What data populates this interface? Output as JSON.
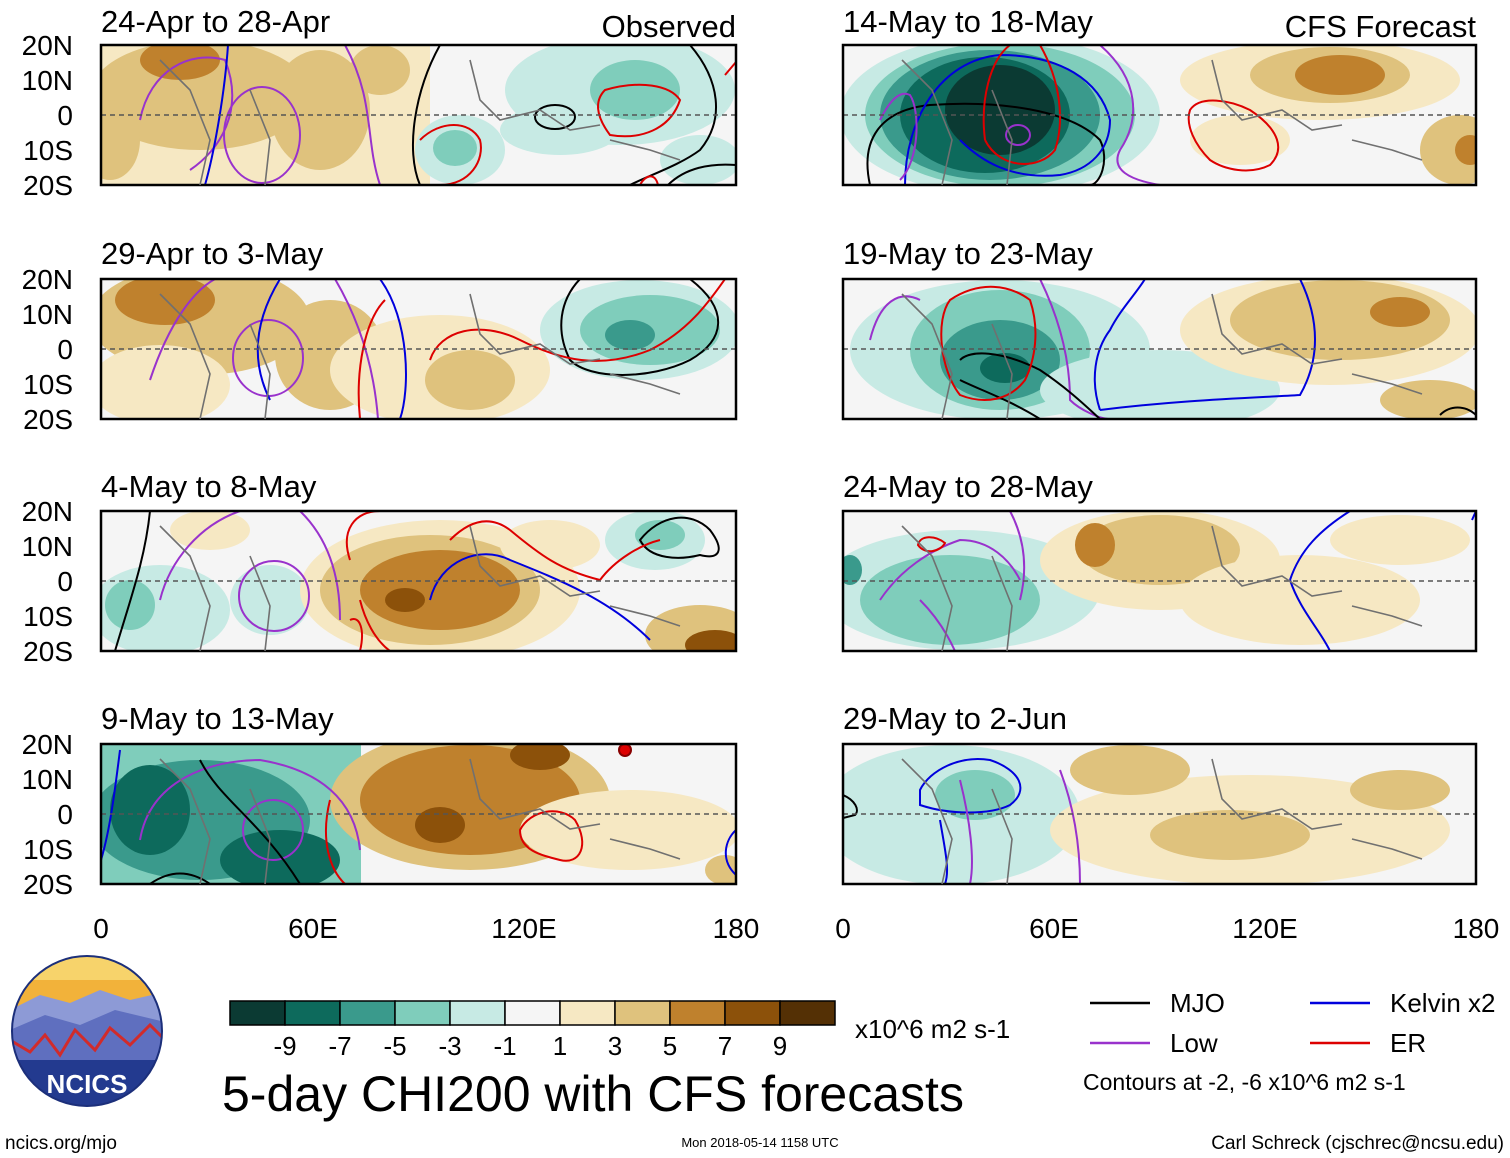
{
  "header": {
    "observed_label": "Observed",
    "forecast_label": "CFS Forecast"
  },
  "panels_observed": [
    {
      "title": "24-Apr to 28-Apr"
    },
    {
      "title": "29-Apr to 3-May"
    },
    {
      "title": "4-May to 8-May"
    },
    {
      "title": "9-May to 13-May"
    }
  ],
  "panels_forecast": [
    {
      "title": "14-May to 18-May"
    },
    {
      "title": "19-May to 23-May"
    },
    {
      "title": "24-May to 28-May"
    },
    {
      "title": "29-May to 2-Jun"
    }
  ],
  "axes": {
    "lat_labels": [
      "20N",
      "10N",
      "0",
      "10S",
      "20S"
    ],
    "lon_labels": [
      "0",
      "60E",
      "120E",
      "180"
    ]
  },
  "colorbar": {
    "colors": [
      "#0b3a33",
      "#0d6a5c",
      "#3a9a8c",
      "#7fcdbb",
      "#c7eae4",
      "#f5f5f5",
      "#f6e8c3",
      "#dfc27d",
      "#bf812d",
      "#8c510a",
      "#543005"
    ],
    "tick_labels": [
      "-9",
      "-7",
      "-5",
      "-3",
      "-1",
      "1",
      "3",
      "5",
      "7",
      "9"
    ],
    "units": "x10^6 m2 s-1"
  },
  "legend": {
    "items": [
      {
        "label": "MJO",
        "color": "#000000"
      },
      {
        "label": "Kelvin x2",
        "color": "#0000dd"
      },
      {
        "label": "Low",
        "color": "#9932cc"
      },
      {
        "label": "ER",
        "color": "#dd0000"
      }
    ],
    "contours_note": "Contours at -2, -6 x10^6 m2 s-1"
  },
  "footer": {
    "main_title": "5-day CHI200 with CFS forecasts",
    "url": "ncics.org/mjo",
    "timestamp": "Mon 2018-05-14 1158 UTC",
    "credit": "Carl Schreck (cjschrec@ncsu.edu)",
    "logo_text": "NCICS"
  }
}
